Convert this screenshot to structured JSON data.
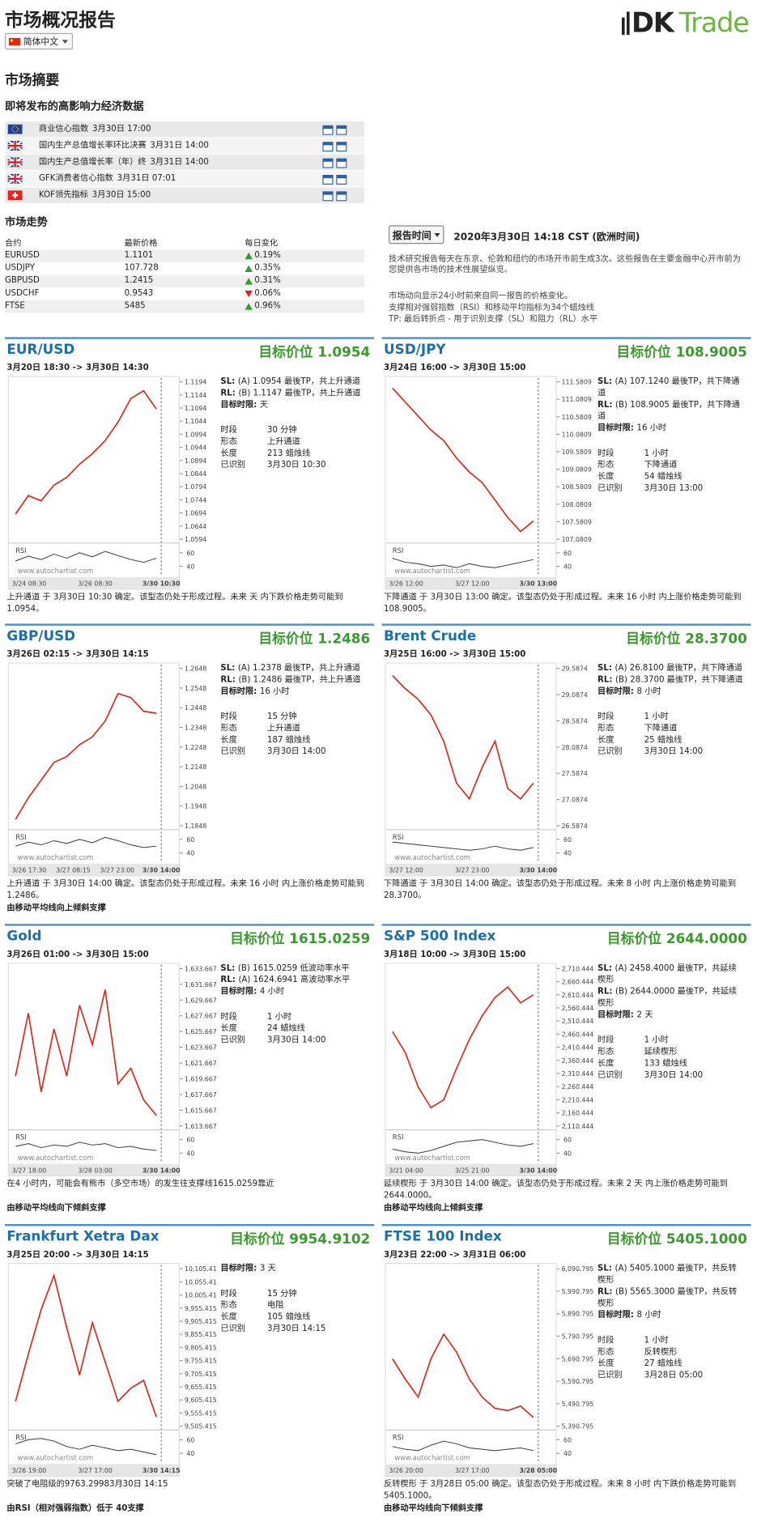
{
  "header": {
    "title": "市场概况报告",
    "language": "简体中文",
    "logo_dk": "DK",
    "logo_trade": "Trade"
  },
  "summary": {
    "title": "市场摘要",
    "events_title": "即将发布的高影响力经济数据",
    "events": [
      {
        "flag": "eu",
        "name": "商业信心指数",
        "time": "3月30日 17:00"
      },
      {
        "flag": "gb",
        "name": "国内生产总值增长率环比决赛",
        "time": "3月31日 14:00"
      },
      {
        "flag": "gb",
        "name": "国内生产总值增长率（年）终",
        "time": "3月31日 14:00"
      },
      {
        "flag": "gb",
        "name": "GFK消费者信心指数",
        "time": "3月31日 07:01"
      },
      {
        "flag": "ch",
        "name": "KOF领先指标",
        "time": "3月30日 15:00"
      }
    ],
    "trend_title": "市场走势",
    "trend_headers": [
      "合约",
      "最新价格",
      "每日变化"
    ],
    "trends": [
      {
        "symbol": "EURUSD",
        "price": "1.1101",
        "change": "0.19%",
        "direction": "up"
      },
      {
        "symbol": "USDJPY",
        "price": "107.728",
        "change": "0.35%",
        "direction": "up"
      },
      {
        "symbol": "GBPUSD",
        "price": "1.2415",
        "change": "0.31%",
        "direction": "up"
      },
      {
        "symbol": "USDCHF",
        "price": "0.9543",
        "change": "0.06%",
        "direction": "down"
      },
      {
        "symbol": "FTSE",
        "price": "5485",
        "change": "0.96%",
        "direction": "up"
      }
    ]
  },
  "report": {
    "button": "报告时间",
    "time": "2020年3月30日 14:18 CST (欧洲时间)",
    "notes": [
      "技术研究报告每天在东京、伦敦和纽约的市场开市前生成3次。这些报告在主要金融中心开市前为您提供各市场的技术性展望纵览。",
      "市场动向显示24小时前来自同一报告的价格变化。",
      "支撑相对强弱指数（RSI）和移动平均指标为34个蜡烛线",
      "TP: 最后转折点 - 用于识别支撑（SL）和阻力（RL）水平"
    ]
  },
  "panels": [
    {
      "title": "EUR/USD",
      "target": "目标价位 1.0954",
      "period": "3月20日 18:30 -> 3月30日 14:30",
      "info": [
        [
          "SL:",
          "(A) 1.0954 最後TP，共上升通道"
        ],
        [
          "RL:",
          "(B) 1.1147 最後TP，共上升通道"
        ],
        [
          "目标时限:",
          "天"
        ]
      ],
      "details": [
        [
          "时段",
          "30 分钟"
        ],
        [
          "形态",
          "上升通道"
        ],
        [
          "长度",
          "213 蜡烛线"
        ],
        [
          "已识别",
          "3月30日 10:30"
        ]
      ],
      "description": "上升通道 于 3月30日 10:30 确定。该型态仍处于形成过程。未来 天 内下跌价格走势可能到 1.0954。",
      "footnote": null,
      "chart": {
        "ylim": [
          1.0594,
          1.1194
        ],
        "yticks": [
          1.1194,
          1.1144,
          1.1094,
          1.1044,
          1.0994,
          1.0944,
          1.0894,
          1.0844,
          1.0794,
          1.0744,
          1.0694,
          1.0644,
          1.0594
        ],
        "xticks": [
          "3/24 08:30",
          "3/26 08:30",
          "3/30 10:30"
        ],
        "price": [
          1.069,
          1.076,
          1.074,
          1.08,
          1.083,
          1.088,
          1.092,
          1.097,
          1.104,
          1.113,
          1.116,
          1.109
        ],
        "rsi": [
          48,
          55,
          50,
          58,
          52,
          60,
          54,
          62,
          56,
          50,
          46,
          52
        ],
        "rsi_ticks": [
          60,
          40
        ],
        "rsi_label": "RSI",
        "watermark": "www.autochartist.com"
      }
    },
    {
      "title": "USD/JPY",
      "target": "目标价位 108.9005",
      "period": "3月24日 16:00 -> 3月30日 15:00",
      "info": [
        [
          "SL:",
          "(A) 107.1240 最後TP，共下降通道"
        ],
        [
          "RL:",
          "(B) 108.9005 最後TP，共下降通道"
        ],
        [
          "目标时限:",
          "16 小时"
        ]
      ],
      "details": [
        [
          "时段",
          "1 小时"
        ],
        [
          "形态",
          "下降通道"
        ],
        [
          "长度",
          "54 蜡烛线"
        ],
        [
          "已识别",
          "3月30日 13:00"
        ]
      ],
      "description": "下降通道 于 3月30日 13:00 确定。该型态仍处于形成过程。未来 16 小时 内上涨价格走势可能到 108.9005。",
      "footnote": null,
      "chart": {
        "ylim": [
          107.0809,
          111.5809
        ],
        "yticks": [
          111.5809,
          111.0809,
          110.5809,
          110.0809,
          109.5809,
          109.0809,
          108.5809,
          108.0809,
          107.5809,
          107.0809
        ],
        "xticks": [
          "3/26 12:00",
          "3/27 12:00",
          "3/30 13:00"
        ],
        "price": [
          111.4,
          111.0,
          110.6,
          110.2,
          109.9,
          109.4,
          109.0,
          108.7,
          108.2,
          107.7,
          107.3,
          107.6
        ],
        "rsi": [
          52,
          46,
          44,
          40,
          42,
          38,
          44,
          40,
          38,
          42,
          46,
          50
        ],
        "rsi_ticks": [
          60,
          40
        ],
        "rsi_label": "RSI",
        "watermark": "www.autochartist.com"
      }
    },
    {
      "title": "GBP/USD",
      "target": "目标价位 1.2486",
      "period": "3月26日 02:15 -> 3月30日 14:15",
      "info": [
        [
          "SL:",
          "(A) 1.2378 最後TP，共上升通道"
        ],
        [
          "RL:",
          "(B) 1.2486 最後TP，共上升通道"
        ],
        [
          "目标时限:",
          "16 小时"
        ]
      ],
      "details": [
        [
          "时段",
          "15 分钟"
        ],
        [
          "形态",
          "上升通道"
        ],
        [
          "长度",
          "187 蜡烛线"
        ],
        [
          "已识别",
          "3月30日 14:00"
        ]
      ],
      "description": "上升通道 于 3月30日 14:00 确定。该型态仍处于形成过程。未来 16 小时 内上涨价格走势可能到 1.2486。",
      "footnote": "由移动平均线向上倾斜支撑",
      "chart": {
        "ylim": [
          1.1848,
          1.2648
        ],
        "yticks": [
          1.2648,
          1.2548,
          1.2448,
          1.2348,
          1.2248,
          1.2148,
          1.2048,
          1.1948,
          1.1848
        ],
        "xticks": [
          "3/26 17:30",
          "3/27 08:15",
          "3/27 23:00",
          "3/30 14:00"
        ],
        "price": [
          1.188,
          1.199,
          1.208,
          1.217,
          1.22,
          1.226,
          1.23,
          1.238,
          1.252,
          1.25,
          1.243,
          1.242
        ],
        "rsi": [
          50,
          56,
          52,
          58,
          54,
          60,
          55,
          63,
          58,
          52,
          48,
          50
        ],
        "rsi_ticks": [
          60,
          40
        ],
        "rsi_label": "RSI",
        "watermark": "www.autochartist.com"
      }
    },
    {
      "title": "Brent Crude",
      "target": "目标价位 28.3700",
      "period": "3月25日 16:00 -> 3月30日 15:00",
      "info": [
        [
          "SL:",
          "(A) 26.8100 最後TP，共下降通道"
        ],
        [
          "RL:",
          "(B) 28.3700 最後TP，共下降通道"
        ],
        [
          "目标时限:",
          "8 小时"
        ]
      ],
      "details": [
        [
          "时段",
          "1 小时"
        ],
        [
          "形态",
          "下降通道"
        ],
        [
          "长度",
          "25 蜡烛线"
        ],
        [
          "已识别",
          "3月30日 14:00"
        ]
      ],
      "description": "下降通道 于 3月30日 14:00 确定。该型态仍处于形成过程。未来 8 小时 内上涨价格走势可能到 28.3700。",
      "footnote": null,
      "chart": {
        "ylim": [
          26.5874,
          29.5874
        ],
        "yticks": [
          29.5874,
          29.0874,
          28.5874,
          28.0874,
          27.5874,
          27.0874,
          26.5874
        ],
        "xticks": [
          "3/27 12:00",
          "3/27 23:00",
          "3/30 14:00"
        ],
        "price": [
          29.45,
          29.2,
          29.0,
          28.7,
          28.2,
          27.4,
          27.1,
          27.7,
          28.2,
          27.3,
          27.1,
          27.4
        ],
        "rsi": [
          56,
          54,
          52,
          50,
          48,
          46,
          44,
          46,
          50,
          46,
          44,
          48
        ],
        "rsi_ticks": [
          60,
          40
        ],
        "rsi_label": "RSI",
        "watermark": "www.autochartist.com"
      }
    },
    {
      "title": "Gold",
      "target": "目标价位 1615.0259",
      "period": "3月26日 01:00 -> 3月30日 15:00",
      "info": [
        [
          "SL:",
          "(B) 1615.0259 低波动率水平"
        ],
        [
          "RL:",
          "(A) 1624.6941 高波动率水平"
        ],
        [
          "目标时限:",
          "4 小时"
        ]
      ],
      "details": [
        [
          "时段",
          "1 小时"
        ],
        [
          "长度",
          "24 蜡烛线"
        ],
        [
          "已识别",
          "3月30日 14:00"
        ]
      ],
      "description": "在4 小时内，可能会有熊市（多空市场）的发生往支撑线1615.0259靠近",
      "footnote": "由移动平均线向下倾斜支撑",
      "chart": {
        "ylim": [
          1613.667,
          1633.667
        ],
        "yticks": [
          {
            "value": 1633.667,
            "label": "1,633.6670"
          },
          {
            "value": 1631.667,
            "label": "1,631.6670"
          },
          {
            "value": 1629.667,
            "label": "1,629.6670"
          },
          {
            "value": 1627.667,
            "label": "1,627.6670"
          },
          {
            "value": 1625.667,
            "label": "1,625.6670"
          },
          {
            "value": 1623.667,
            "label": "1,623.6670"
          },
          {
            "value": 1621.667,
            "label": "1,621.6670"
          },
          {
            "value": 1619.667,
            "label": "1,619.6670"
          },
          {
            "value": 1617.667,
            "label": "1,617.6670"
          },
          {
            "value": 1615.667,
            "label": "1,615.6670"
          },
          {
            "value": 1613.667,
            "label": "1,613.6670"
          }
        ],
        "xticks": [
          "3/27 18:00",
          "3/28 03:00",
          "3/30 14:00"
        ],
        "price": [
          1620,
          1628,
          1618,
          1626,
          1620,
          1629,
          1624,
          1631,
          1619,
          1621,
          1617,
          1615
        ],
        "rsi": [
          50,
          54,
          48,
          52,
          50,
          56,
          52,
          54,
          48,
          50,
          46,
          44
        ],
        "rsi_ticks": [
          60,
          40
        ],
        "rsi_label": "RSI",
        "watermark": "www.autochartist.com"
      }
    },
    {
      "title": "S&P 500 Index",
      "target": "目标价位 2644.0000",
      "period": "3月18日 10:00 -> 3月30日 15:00",
      "info": [
        [
          "SL:",
          "(A) 2458.4000 最後TP，共延续楔形"
        ],
        [
          "RL:",
          "(B) 2644.0000 最後TP，共延续楔形"
        ],
        [
          "目标时限:",
          "2 天"
        ]
      ],
      "details": [
        [
          "时段",
          "1 小时"
        ],
        [
          "形态",
          "延续楔形"
        ],
        [
          "长度",
          "133 蜡烛线"
        ],
        [
          "已识别",
          "3月30日 14:00"
        ]
      ],
      "description": "延续楔形 于 3月30日 14:00 确定。该型态仍处于形成过程。未来 2 天 内上涨价格走势可能到 2644.0000。",
      "footnote": "由移动平均线向上倾斜支撑",
      "chart": {
        "ylim": [
          2110.4445,
          2710.4445
        ],
        "yticks": [
          {
            "value": 2710.4445,
            "label": "2,710.4445"
          },
          {
            "value": 2660.4445,
            "label": "2,660.4445"
          },
          {
            "value": 2610.4445,
            "label": "2,610.4445"
          },
          {
            "value": 2560.4445,
            "label": "2,560.4445"
          },
          {
            "value": 2510.4445,
            "label": "2,510.4445"
          },
          {
            "value": 2460.4445,
            "label": "2,460.4445"
          },
          {
            "value": 2410.4445,
            "label": "2,410.4445"
          },
          {
            "value": 2360.4445,
            "label": "2,360.4445"
          },
          {
            "value": 2310.4445,
            "label": "2,310.4445"
          },
          {
            "value": 2260.4445,
            "label": "2,260.4445"
          },
          {
            "value": 2210.4445,
            "label": "2,210.4445"
          },
          {
            "value": 2160.4445,
            "label": "2,160.4445"
          },
          {
            "value": 2110.4445,
            "label": "2,110.4445"
          }
        ],
        "xticks": [
          "3/21 04:00",
          "3/25 21:00",
          "3/30 14:00"
        ],
        "price": [
          2470,
          2390,
          2260,
          2180,
          2210,
          2330,
          2440,
          2530,
          2600,
          2640,
          2580,
          2610
        ],
        "rsi": [
          46,
          42,
          40,
          44,
          50,
          56,
          58,
          60,
          56,
          52,
          50,
          54
        ],
        "rsi_ticks": [
          60,
          40
        ],
        "rsi_label": "RSI",
        "watermark": "www.autochartist.com"
      }
    },
    {
      "title": "Frankfurt Xetra Dax",
      "target": "目标价位 9954.9102",
      "period": "3月25日 20:00 -> 3月30日 14:15",
      "info": [
        [
          "目标时限:",
          "3 天"
        ]
      ],
      "details": [
        [
          "时段",
          "15 分钟"
        ],
        [
          "形态",
          "电阻"
        ],
        [
          "长度",
          "105 蜡烛线"
        ],
        [
          "已识别",
          "3月30日 14:15"
        ]
      ],
      "description": "突破了电阻级的9763.29983月30日 14:15",
      "footnote": "由RSI（相对强弱指数）低于 40支撑",
      "chart": {
        "ylim": [
          9505.415,
          10105.415
        ],
        "yticks": [
          {
            "value": 10105.415,
            "label": "10,105.4150"
          },
          {
            "value": 10055.415,
            "label": "10,055.4150"
          },
          {
            "value": 10005.415,
            "label": "10,005.4150"
          },
          {
            "value": 9955.415,
            "label": "9,955.4150"
          },
          {
            "value": 9905.415,
            "label": "9,905.4150"
          },
          {
            "value": 9855.415,
            "label": "9,855.4150"
          },
          {
            "value": 9805.415,
            "label": "9,805.4150"
          },
          {
            "value": 9755.415,
            "label": "9,755.4150"
          },
          {
            "value": 9705.415,
            "label": "9,705.4150"
          },
          {
            "value": 9655.415,
            "label": "9,655.4150"
          },
          {
            "value": 9605.415,
            "label": "9,605.4150"
          },
          {
            "value": 9555.415,
            "label": "9,555.4150"
          },
          {
            "value": 9505.415,
            "label": "9,505.4150"
          }
        ],
        "xticks": [
          "3/26 19:00",
          "3/27 17:00",
          "3/30 14:15"
        ],
        "price": [
          9600,
          9780,
          9950,
          10080,
          9880,
          9700,
          9900,
          9750,
          9600,
          9650,
          9680,
          9540
        ],
        "rsi": [
          54,
          60,
          62,
          58,
          50,
          46,
          52,
          48,
          44,
          46,
          42,
          38
        ],
        "rsi_ticks": [
          60,
          40
        ],
        "rsi_label": "RSI",
        "watermark": "www.autochartist.com"
      }
    },
    {
      "title": "FTSE 100 Index",
      "target": "目标价位 5405.1000",
      "period": "3月23日 22:00 -> 3月31日 06:00",
      "info": [
        [
          "SL:",
          "(A) 5405.1000 最後TP，共反转楔形"
        ],
        [
          "RL:",
          "(B) 5565.3000 最後TP，共反转楔形"
        ],
        [
          "目标时限:",
          "8 小时"
        ]
      ],
      "details": [
        [
          "时段",
          "1 小时"
        ],
        [
          "形态",
          "反转楔形"
        ],
        [
          "长度",
          "27 蜡烛线"
        ],
        [
          "已识别",
          "3月28日 05:00"
        ]
      ],
      "description": "反转楔形 于 3月28日 05:00 确定。该型态仍处于形成过程。未来 8 小时 内下跌价格走势可能到 5405.1000。",
      "footnote": "由移动平均线向下倾斜支撑",
      "chart": {
        "ylim": [
          5390.7957,
          6090.7957
        ],
        "yticks": [
          {
            "value": 6090.7957,
            "label": "6,090.7957"
          },
          {
            "value": 5990.7957,
            "label": "5,990.7957"
          },
          {
            "value": 5890.7957,
            "label": "5,890.7957"
          },
          {
            "value": 5790.7957,
            "label": "5,790.7957"
          },
          {
            "value": 5690.7957,
            "label": "5,690.7957"
          },
          {
            "value": 5590.7957,
            "label": "5,590.7957"
          },
          {
            "value": 5490.7957,
            "label": "5,490.7957"
          },
          {
            "value": 5390.7957,
            "label": "5,390.7957"
          }
        ],
        "xticks": [
          "3/26 20:00",
          "3/27 17:00",
          "3/28 05:00"
        ],
        "price": [
          5690,
          5600,
          5520,
          5690,
          5800,
          5720,
          5600,
          5520,
          5470,
          5460,
          5480,
          5430
        ],
        "rsi": [
          50,
          46,
          44,
          52,
          58,
          54,
          48,
          46,
          44,
          46,
          48,
          44
        ],
        "rsi_ticks": [
          60,
          40
        ],
        "rsi_label": "RSI",
        "watermark": "www.autochartist.com"
      }
    }
  ]
}
